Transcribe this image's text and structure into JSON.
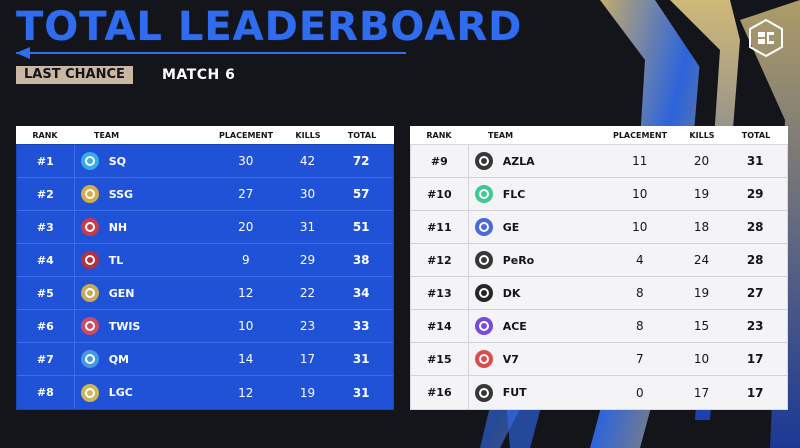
{
  "header": {
    "title": "TOTAL LEADERBOARD",
    "badge": "LAST CHANCE",
    "subtitle": "MATCH 6"
  },
  "columns": {
    "rank": "RANK",
    "team": "TEAM",
    "placement": "PLACEMENT",
    "kills": "KILLS",
    "total": "TOTAL"
  },
  "left": [
    {
      "rank": "#1",
      "team": "SQ",
      "placement": "30",
      "kills": "42",
      "total": "72"
    },
    {
      "rank": "#2",
      "team": "SSG",
      "placement": "27",
      "kills": "30",
      "total": "57"
    },
    {
      "rank": "#3",
      "team": "NH",
      "placement": "20",
      "kills": "31",
      "total": "51"
    },
    {
      "rank": "#4",
      "team": "TL",
      "placement": "9",
      "kills": "29",
      "total": "38"
    },
    {
      "rank": "#5",
      "team": "GEN",
      "placement": "12",
      "kills": "22",
      "total": "34"
    },
    {
      "rank": "#6",
      "team": "TWIS",
      "placement": "10",
      "kills": "23",
      "total": "33"
    },
    {
      "rank": "#7",
      "team": "QM",
      "placement": "14",
      "kills": "17",
      "total": "31"
    },
    {
      "rank": "#8",
      "team": "LGC",
      "placement": "12",
      "kills": "19",
      "total": "31"
    }
  ],
  "right": [
    {
      "rank": "#9",
      "team": "AZLA",
      "placement": "11",
      "kills": "20",
      "total": "31"
    },
    {
      "rank": "#10",
      "team": "FLC",
      "placement": "10",
      "kills": "19",
      "total": "29"
    },
    {
      "rank": "#11",
      "team": "GE",
      "placement": "10",
      "kills": "18",
      "total": "28"
    },
    {
      "rank": "#12",
      "team": "PeRo",
      "placement": "4",
      "kills": "24",
      "total": "28"
    },
    {
      "rank": "#13",
      "team": "DK",
      "placement": "8",
      "kills": "19",
      "total": "27"
    },
    {
      "rank": "#14",
      "team": "ACE",
      "placement": "8",
      "kills": "15",
      "total": "23"
    },
    {
      "rank": "#15",
      "team": "V7",
      "placement": "7",
      "kills": "10",
      "total": "17"
    },
    {
      "rank": "#16",
      "team": "FUT",
      "placement": "0",
      "kills": "17",
      "total": "17"
    }
  ],
  "colors": {
    "title_blue": "#2f6cf0",
    "left_table": "#1f52d6",
    "right_table": "#f4f4f6",
    "badge": "#c9b7a3"
  }
}
